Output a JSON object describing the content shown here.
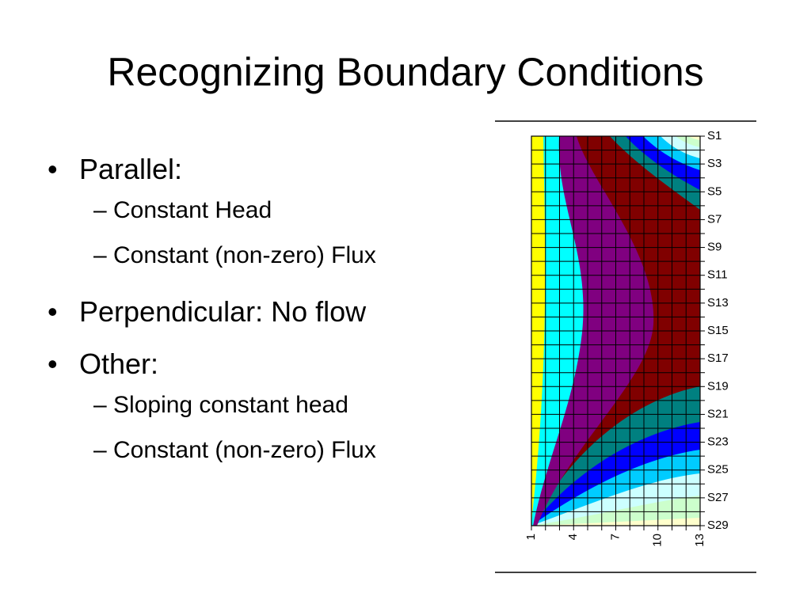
{
  "title": "Recognizing Boundary Conditions",
  "bullets": [
    {
      "text": "Parallel:",
      "sub": [
        "– Constant Head",
        "– Constant (non-zero) Flux"
      ]
    },
    {
      "text": "Perpendicular: No flow"
    },
    {
      "text": "Other:",
      "sub": [
        "– Sloping constant head",
        "– Constant (non-zero) Flux"
      ]
    }
  ],
  "figure": {
    "x_labels": [
      "1",
      "4",
      "7",
      "10",
      "13"
    ],
    "y_labels": [
      "S1",
      "S3",
      "S5",
      "S7",
      "S9",
      "S11",
      "S13",
      "S15",
      "S17",
      "S19",
      "S21",
      "S23",
      "S25",
      "S27",
      "S29"
    ]
  }
}
